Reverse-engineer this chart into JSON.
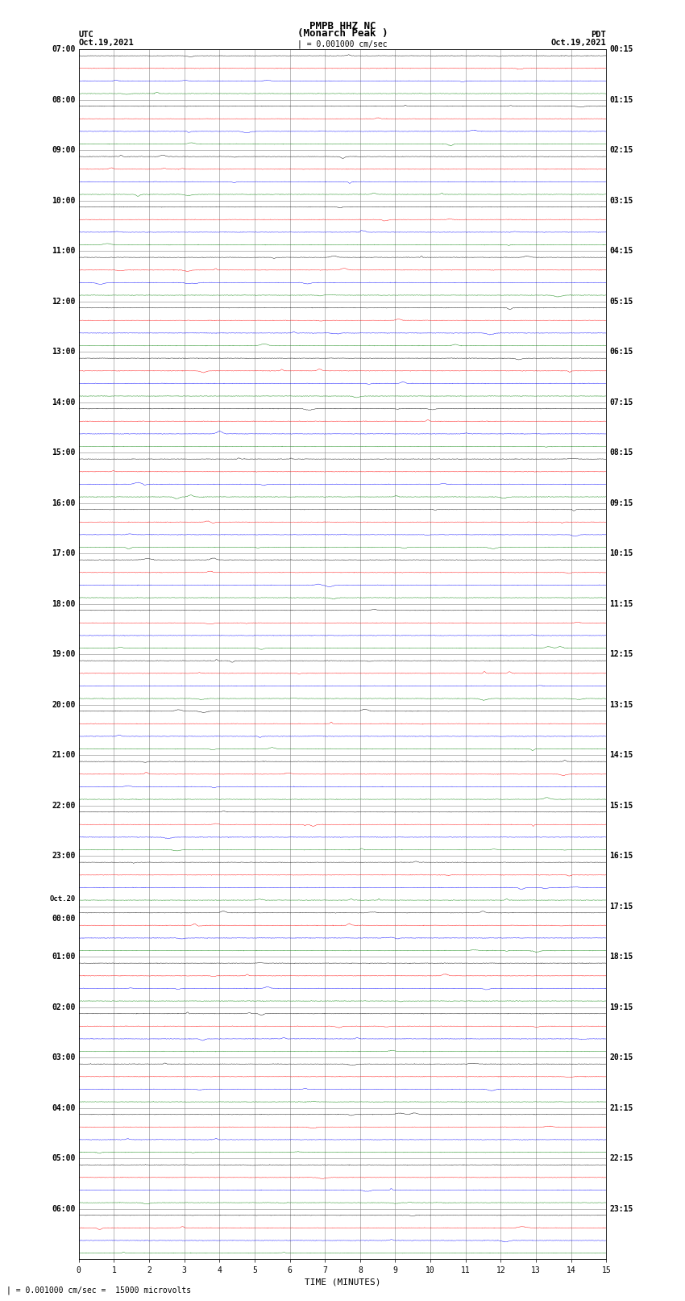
{
  "title_line1": "PMPB HHZ NC",
  "title_line2": "(Monarch Peak )",
  "scale_text": "| = 0.001000 cm/sec",
  "footer_text": "| = 0.001000 cm/sec =  15000 microvolts",
  "utc_label": "UTC",
  "utc_date": "Oct.19,2021",
  "pdt_label": "PDT",
  "pdt_date": "Oct.19,2021",
  "xlabel": "TIME (MINUTES)",
  "left_labels": [
    [
      "07:00",
      0
    ],
    [
      "08:00",
      4
    ],
    [
      "09:00",
      8
    ],
    [
      "10:00",
      12
    ],
    [
      "11:00",
      16
    ],
    [
      "12:00",
      20
    ],
    [
      "13:00",
      24
    ],
    [
      "14:00",
      28
    ],
    [
      "15:00",
      32
    ],
    [
      "16:00",
      36
    ],
    [
      "17:00",
      40
    ],
    [
      "18:00",
      44
    ],
    [
      "19:00",
      48
    ],
    [
      "20:00",
      52
    ],
    [
      "21:00",
      56
    ],
    [
      "22:00",
      60
    ],
    [
      "23:00",
      64
    ],
    [
      "Oct.20",
      68
    ],
    [
      "00:00",
      69
    ],
    [
      "01:00",
      72
    ],
    [
      "02:00",
      76
    ],
    [
      "03:00",
      80
    ],
    [
      "04:00",
      84
    ],
    [
      "05:00",
      88
    ],
    [
      "06:00",
      92
    ]
  ],
  "right_labels": [
    [
      "00:15",
      0
    ],
    [
      "01:15",
      4
    ],
    [
      "02:15",
      8
    ],
    [
      "03:15",
      12
    ],
    [
      "04:15",
      16
    ],
    [
      "05:15",
      20
    ],
    [
      "06:15",
      24
    ],
    [
      "07:15",
      28
    ],
    [
      "08:15",
      32
    ],
    [
      "09:15",
      36
    ],
    [
      "10:15",
      40
    ],
    [
      "11:15",
      44
    ],
    [
      "12:15",
      48
    ],
    [
      "13:15",
      52
    ],
    [
      "14:15",
      56
    ],
    [
      "15:15",
      60
    ],
    [
      "16:15",
      64
    ],
    [
      "17:15",
      68
    ],
    [
      "18:15",
      72
    ],
    [
      "19:15",
      76
    ],
    [
      "20:15",
      80
    ],
    [
      "21:15",
      84
    ],
    [
      "22:15",
      88
    ],
    [
      "23:15",
      92
    ]
  ],
  "trace_colors": [
    "black",
    "red",
    "blue",
    "green"
  ],
  "n_rows": 96,
  "x_min": 0,
  "x_max": 15,
  "x_ticks": [
    0,
    1,
    2,
    3,
    4,
    5,
    6,
    7,
    8,
    9,
    10,
    11,
    12,
    13,
    14,
    15
  ],
  "bg_color": "white",
  "noise_amplitude": 0.12,
  "fig_width": 8.5,
  "fig_height": 16.13,
  "dpi": 100,
  "grid_color": "#888888",
  "trace_linewidth": 0.3
}
